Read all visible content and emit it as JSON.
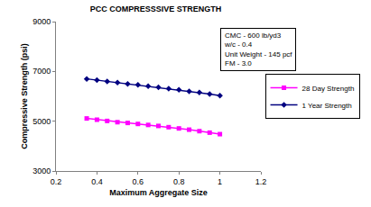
{
  "chart_data": {
    "type": "line",
    "title": "PCC COMPRESSSIVE STRENGTH",
    "x_label": "Maximum Aggregate Size",
    "y_label": "Compressive Strength (psi)",
    "annotations": [
      "CMC - 600 lb/yd3",
      "w/c - 0.4",
      "Unit Weight - 145 pcf",
      "FM - 3.0"
    ],
    "x": [
      0.35,
      0.4,
      0.45,
      0.5,
      0.55,
      0.6,
      0.65,
      0.7,
      0.75,
      0.8,
      0.85,
      0.9,
      0.95,
      1.0
    ],
    "series": [
      {
        "name": "28 Day Strength",
        "color": "#ff00ff",
        "marker": "square",
        "values": [
          5110,
          5060,
          5010,
          4960,
          4930,
          4890,
          4850,
          4810,
          4760,
          4710,
          4660,
          4600,
          4540,
          4480
        ]
      },
      {
        "name": "1 Year Strength",
        "color": "#000080",
        "marker": "diamond",
        "values": [
          6700,
          6650,
          6600,
          6550,
          6500,
          6460,
          6410,
          6360,
          6310,
          6260,
          6200,
          6150,
          6090,
          6030
        ]
      }
    ],
    "xlim": [
      0.2,
      1.2
    ],
    "xticks": [
      0.2,
      0.4,
      0.6,
      0.8,
      {
        "value": 1.0,
        "label": "1"
      },
      1.2
    ],
    "ylim": [
      3000,
      9000
    ],
    "yticks": [
      3000,
      5000,
      7000,
      9000
    ],
    "grid": false,
    "legend": "right"
  }
}
